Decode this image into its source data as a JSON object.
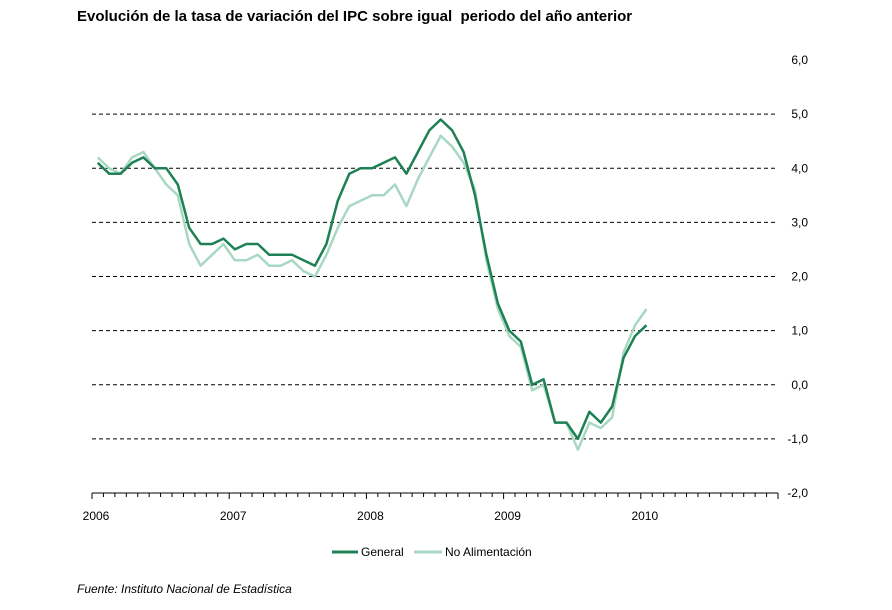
{
  "title": "Evolución de la tasa de variación del IPC sobre igual  periodo del año anterior",
  "source": "Fuente: Instituto Nacional de Estadística",
  "colors": {
    "general": "#1e8054",
    "no_alimentacion": "#a8d8c4",
    "grid": "#000000"
  },
  "chart_data": {
    "type": "line",
    "title": "Evolución de la tasa de variación del IPC sobre igual  periodo del año anterior",
    "xlabel": "",
    "ylabel": "",
    "ylim": [
      -2,
      6
    ],
    "yticks": [
      "6,0",
      "5,0",
      "4,0",
      "3,0",
      "2,0",
      "1,0",
      "0,0",
      "-1,0",
      "-2,0"
    ],
    "ytick_values": [
      6,
      5,
      4,
      3,
      2,
      1,
      0,
      -1,
      -2
    ],
    "xticks": [
      "2006",
      "2007",
      "2008",
      "2009",
      "2010"
    ],
    "x_start": "2006-01",
    "x_end": "2010-12",
    "grid": "horizontal dashed",
    "legend": "bottom",
    "series": [
      {
        "name": "General",
        "color": "#1e8054",
        "values": [
          4.1,
          3.9,
          3.9,
          4.1,
          4.2,
          4.0,
          4.0,
          3.7,
          2.9,
          2.6,
          2.6,
          2.7,
          2.5,
          2.6,
          2.6,
          2.4,
          2.4,
          2.4,
          2.3,
          2.2,
          2.6,
          3.4,
          3.9,
          4.0,
          4.0,
          4.1,
          4.2,
          3.9,
          4.3,
          4.7,
          4.9,
          4.7,
          4.3,
          3.5,
          2.4,
          1.5,
          1.0,
          0.8,
          0.0,
          0.1,
          -0.7,
          -0.7,
          -1.0,
          -0.5,
          -0.7,
          -0.4,
          0.5,
          0.9,
          1.1
        ]
      },
      {
        "name": "No Alimentación",
        "color": "#a8d8c4",
        "values": [
          4.2,
          4.0,
          3.9,
          4.2,
          4.3,
          4.0,
          3.7,
          3.5,
          2.6,
          2.2,
          2.4,
          2.6,
          2.3,
          2.3,
          2.4,
          2.2,
          2.2,
          2.3,
          2.1,
          2.0,
          2.4,
          2.9,
          3.3,
          3.4,
          3.5,
          3.5,
          3.7,
          3.3,
          3.8,
          4.2,
          4.6,
          4.4,
          4.1,
          3.6,
          2.3,
          1.4,
          0.9,
          0.7,
          -0.1,
          0.0,
          -0.7,
          -0.7,
          -1.2,
          -0.7,
          -0.8,
          -0.6,
          0.6,
          1.1,
          1.4
        ]
      }
    ]
  }
}
